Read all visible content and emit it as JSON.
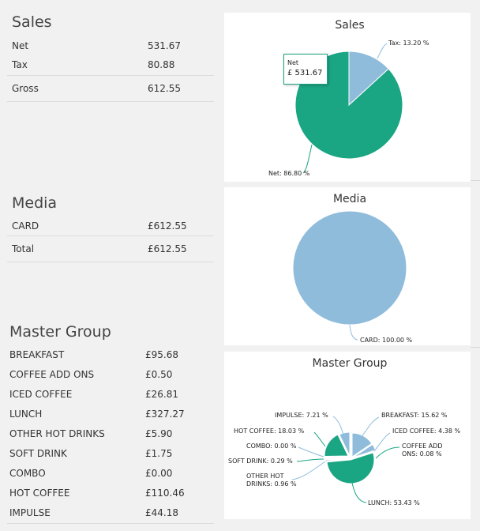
{
  "sales": {
    "title": "Sales",
    "rows": [
      {
        "label": "Net",
        "value": "531.67"
      },
      {
        "label": "Tax",
        "value": "80.88"
      },
      {
        "label": "Gross",
        "value": "612.55"
      }
    ]
  },
  "media": {
    "title": "Media",
    "rows": [
      {
        "label": "CARD",
        "value": "£612.55"
      },
      {
        "label": "Total",
        "value": "£612.55"
      }
    ]
  },
  "master_group": {
    "title": "Master Group",
    "rows": [
      {
        "label": "BREAKFAST",
        "value": "£95.68"
      },
      {
        "label": "COFFEE ADD ONS",
        "value": "£0.50"
      },
      {
        "label": "ICED COFFEE",
        "value": "£26.81"
      },
      {
        "label": "LUNCH",
        "value": "£327.27"
      },
      {
        "label": "OTHER HOT DRINKS",
        "value": "£5.90"
      },
      {
        "label": "SOFT DRINK",
        "value": "£1.75"
      },
      {
        "label": "COMBO",
        "value": "£0.00"
      },
      {
        "label": "HOT COFFEE",
        "value": "£110.46"
      },
      {
        "label": "IMPULSE",
        "value": "£44.18"
      }
    ]
  },
  "tooltip": {
    "title": "Net",
    "value": "£ 531.67"
  },
  "chart_data": [
    {
      "type": "pie",
      "title": "Sales",
      "slices": [
        {
          "name": "Tax",
          "value": 13.2,
          "label": "Tax: 13.20 %",
          "color": "#8fbcdb"
        },
        {
          "name": "Net",
          "value": 86.8,
          "label": "Net: 86.80 %",
          "color": "#1aa583"
        }
      ]
    },
    {
      "type": "pie",
      "title": "Media",
      "slices": [
        {
          "name": "CARD",
          "value": 100.0,
          "label": "CARD: 100.00 %",
          "color": "#8fbcdb"
        }
      ]
    },
    {
      "type": "pie",
      "title": "Master Group",
      "slices": [
        {
          "name": "BREAKFAST",
          "value": 15.62,
          "label": "BREAKFAST: 15.62 %",
          "color": "#8fbcdb"
        },
        {
          "name": "ICED COFFEE",
          "value": 4.38,
          "label": "ICED COFFEE: 4.38 %",
          "color": "#8fbcdb"
        },
        {
          "name": "COFFEE ADD ONS",
          "value": 0.08,
          "label": "COFFEE ADD ONS: 0.08 %",
          "color": "#1aa583"
        },
        {
          "name": "LUNCH",
          "value": 53.43,
          "label": "LUNCH: 53.43 %",
          "color": "#1aa583"
        },
        {
          "name": "OTHER HOT DRINKS",
          "value": 0.96,
          "label": "OTHER HOT DRINKS: 0.96 %",
          "color": "#8fbcdb"
        },
        {
          "name": "SOFT DRINK",
          "value": 0.29,
          "label": "SOFT DRINK: 0.29 %",
          "color": "#1aa583"
        },
        {
          "name": "COMBO",
          "value": 0.0,
          "label": "COMBO: 0.00 %",
          "color": "#8fbcdb"
        },
        {
          "name": "HOT COFFEE",
          "value": 18.03,
          "label": "HOT COFFEE: 18.03 %",
          "color": "#1aa583"
        },
        {
          "name": "IMPULSE",
          "value": 7.21,
          "label": "IMPULSE: 7.21 %",
          "color": "#8fbcdb"
        }
      ]
    }
  ]
}
